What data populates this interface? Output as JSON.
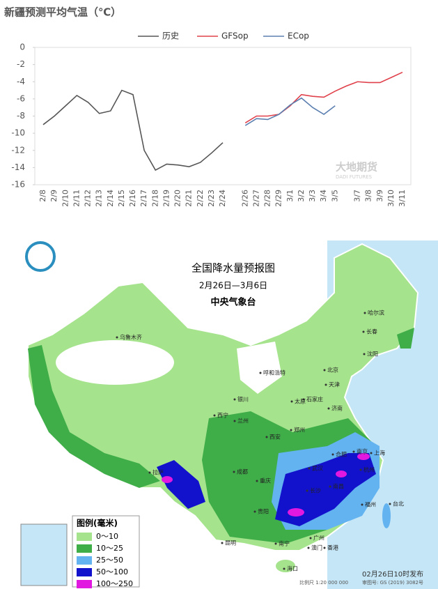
{
  "chart_data": {
    "type": "line",
    "title": "新疆预测平均气温（℃）",
    "watermark": "大地期货",
    "watermark_sub": "DADI FUTURES",
    "categories": [
      "2/8",
      "2/9",
      "2/10",
      "2/11",
      "2/12",
      "2/13",
      "2/14",
      "2/15",
      "2/16",
      "2/17",
      "2/18",
      "2/19",
      "2/20",
      "2/21",
      "2/22",
      "2/23",
      "2/24",
      null,
      "2/26",
      "2/27",
      "2/28",
      "2/29",
      "3/1",
      "3/2",
      "3/3",
      "3/4",
      "3/5",
      null,
      "3/7",
      "3/8",
      "3/9",
      "3/10",
      "3/11"
    ],
    "series": [
      {
        "name": "历史",
        "color": "#555555",
        "values": [
          -9,
          -8,
          -6.8,
          -5.6,
          -6.4,
          -7.7,
          -7.4,
          -5,
          -5.5,
          -12,
          -14.3,
          -13.6,
          -13.7,
          -13.9,
          -13.4,
          -12.3,
          -11.1,
          null,
          null,
          null,
          null,
          null,
          null,
          null,
          null,
          null,
          null,
          null,
          null,
          null,
          null,
          null,
          null
        ]
      },
      {
        "name": "GFSop",
        "color": "#e0404a",
        "values": [
          null,
          null,
          null,
          null,
          null,
          null,
          null,
          null,
          null,
          null,
          null,
          null,
          null,
          null,
          null,
          null,
          null,
          null,
          -8.8,
          -8,
          -8,
          -7.8,
          -6.8,
          -5.5,
          -5.7,
          -5.8,
          -5.1,
          -4.5,
          -4,
          -4.1,
          -4.1,
          -3.5,
          -2.9
        ]
      },
      {
        "name": "ECop",
        "color": "#5b7fb0",
        "values": [
          null,
          null,
          null,
          null,
          null,
          null,
          null,
          null,
          null,
          null,
          null,
          null,
          null,
          null,
          null,
          null,
          null,
          null,
          -9.1,
          -8.3,
          -8.4,
          -7.8,
          -6.7,
          -5.9,
          -7,
          -7.8,
          -6.8,
          null,
          null,
          null,
          null,
          null,
          null
        ]
      }
    ],
    "ylim": [
      -16,
      0
    ],
    "yticks": [
      0,
      -2,
      -4,
      -6,
      -8,
      -10,
      -12,
      -14,
      -16
    ],
    "grid": false
  },
  "map": {
    "title": "全国降水量预报图",
    "period": "2月26日—3月6日",
    "issuer": "中央气象台",
    "legend": {
      "title": "图例(毫米)",
      "items": [
        {
          "label": "0～10",
          "color": "#a6e38d"
        },
        {
          "label": "10～25",
          "color": "#3fae49"
        },
        {
          "label": "25～50",
          "color": "#63b3f0"
        },
        {
          "label": "50～100",
          "color": "#1212cc"
        },
        {
          "label": "100～250",
          "color": "#e018e0"
        }
      ]
    },
    "release": "02月26日10时发布",
    "scale": "比例尺 1:20 000 000",
    "approval": "审图号: GS (2019) 3082号",
    "cities": [
      "乌鲁木齐",
      "哈尔滨",
      "长春",
      "沈阳",
      "呼和浩特",
      "北京",
      "天津",
      "银川",
      "石家庄",
      "太原",
      "济南",
      "西宁",
      "兰州",
      "郑州",
      "西安",
      "合肥",
      "南京",
      "上海",
      "拉萨",
      "成都",
      "重庆",
      "武汉",
      "杭州",
      "长沙",
      "南昌",
      "贵阳",
      "福州",
      "台北",
      "昆明",
      "南宁",
      "广州",
      "香港",
      "澳门",
      "海口"
    ]
  }
}
